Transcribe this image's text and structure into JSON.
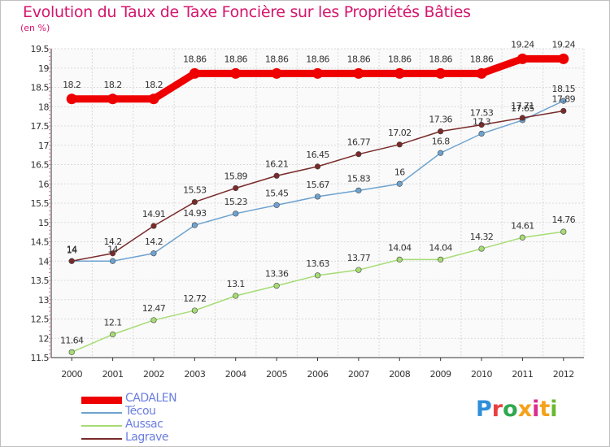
{
  "header": {
    "title": "Evolution du Taux de Taxe Foncière sur les Propriétés Bâties",
    "unit": "(en %)"
  },
  "logo": {
    "letters": [
      "P",
      "r",
      "o",
      "x",
      "i",
      "t",
      "i"
    ],
    "colors": [
      "#2f8fd8",
      "#e84040",
      "#2fa84f",
      "#f4a21a",
      "#d92f8c",
      "#f4a21a",
      "#6ab82f"
    ]
  },
  "chart_data": {
    "type": "line",
    "title": "Evolution du Taux de Taxe Foncière sur les Propriétés Bâties",
    "ylabel": "(en %)",
    "xlabel": "",
    "x": [
      "2000",
      "2001",
      "2002",
      "2003",
      "2004",
      "2005",
      "2006",
      "2007",
      "2008",
      "2009",
      "2010",
      "2011",
      "2012"
    ],
    "ylim": [
      11.5,
      19.5
    ],
    "yticks": [
      "11.5",
      "12",
      "12.5",
      "13",
      "13.5",
      "14",
      "14.5",
      "15",
      "15.5",
      "16",
      "16.5",
      "17",
      "17.5",
      "18",
      "18.5",
      "19",
      "19.5"
    ],
    "grid": true,
    "series": [
      {
        "name": "CADALEN",
        "color": "#ee0000",
        "values": [
          18.2,
          18.2,
          18.2,
          18.86,
          18.86,
          18.86,
          18.86,
          18.86,
          18.86,
          18.86,
          18.86,
          19.24,
          19.24
        ],
        "labels": [
          "18.2",
          "18.2",
          "18.2",
          "18.86",
          "18.86",
          "18.86",
          "18.86",
          "18.86",
          "18.86",
          "18.86",
          "18.86",
          "19.24",
          "19.24"
        ]
      },
      {
        "name": "Técou",
        "color": "#6ea2cf",
        "values": [
          14,
          14,
          14.2,
          14.93,
          15.23,
          15.45,
          15.67,
          15.83,
          16,
          16.8,
          17.3,
          17.65,
          18.15
        ],
        "labels": [
          "14",
          "14",
          "14.2",
          "14.93",
          "15.23",
          "15.45",
          "15.67",
          "15.83",
          "16",
          "16.8",
          "17.3",
          "17.65",
          "18.15"
        ]
      },
      {
        "name": "Aussac",
        "color": "#a6dc74",
        "values": [
          11.64,
          12.1,
          12.47,
          12.72,
          13.1,
          13.36,
          13.63,
          13.77,
          14.04,
          14.04,
          14.32,
          14.61,
          14.76
        ],
        "labels": [
          "11.64",
          "12.1",
          "12.47",
          "12.72",
          "13.1",
          "13.36",
          "13.63",
          "13.77",
          "14.04",
          "14.04",
          "14.32",
          "14.61",
          "14.76"
        ]
      },
      {
        "name": "Lagrave",
        "color": "#7a2a2a",
        "values": [
          14,
          14.2,
          14.91,
          15.53,
          15.89,
          16.21,
          16.45,
          16.77,
          17.02,
          17.36,
          17.53,
          17.71,
          17.89
        ],
        "labels": [
          "14",
          "14.2",
          "14.91",
          "15.53",
          "15.89",
          "16.21",
          "16.45",
          "16.77",
          "17.02",
          "17.36",
          "17.53",
          "17.71",
          "17.89"
        ]
      }
    ]
  }
}
